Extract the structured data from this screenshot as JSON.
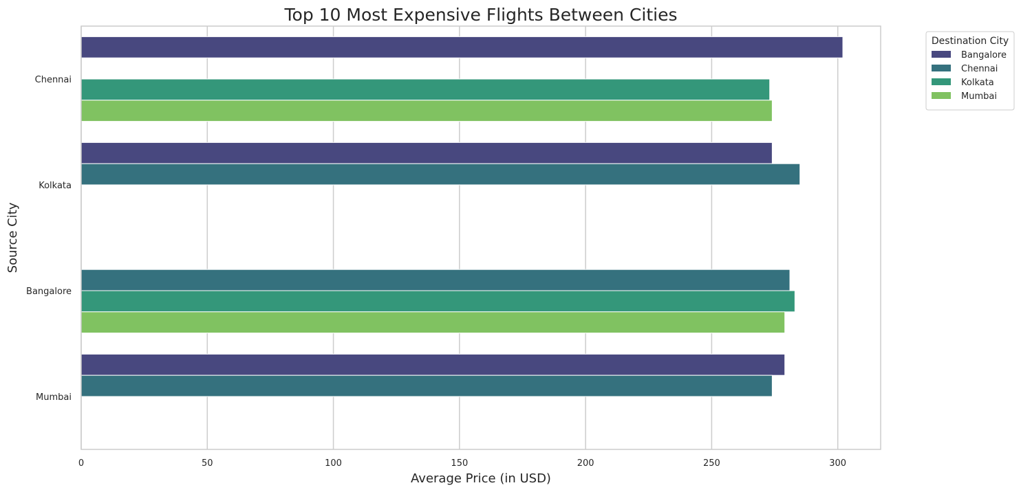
{
  "chart_data": {
    "type": "bar",
    "orientation": "horizontal",
    "title": "Top 10 Most Expensive Flights Between Cities",
    "xlabel": "Average Price (in USD)",
    "ylabel": "Source City",
    "categories": [
      "Chennai",
      "Kolkata",
      "Bangalore",
      "Mumbai"
    ],
    "legend_title": "Destination City",
    "legend_position": "outside-top-right",
    "grid": "vertical",
    "xlim": [
      0,
      317
    ],
    "xticks": [
      0,
      50,
      100,
      150,
      200,
      250,
      300
    ],
    "series": [
      {
        "name": "Bangalore",
        "color": "#48487f",
        "values": [
          302,
          274,
          null,
          279
        ]
      },
      {
        "name": "Chennai",
        "color": "#35717e",
        "values": [
          null,
          285,
          281,
          274
        ]
      },
      {
        "name": "Kolkata",
        "color": "#34977a",
        "values": [
          273,
          null,
          283,
          null
        ]
      },
      {
        "name": "Mumbai",
        "color": "#80c261",
        "values": [
          274,
          null,
          279,
          null
        ]
      }
    ]
  }
}
